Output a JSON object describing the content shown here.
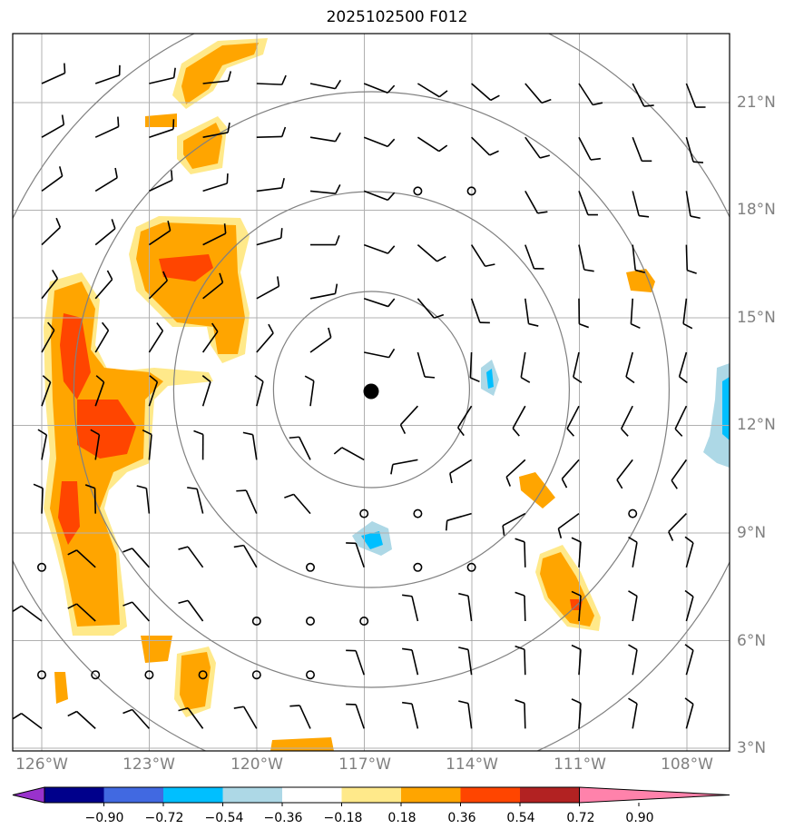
{
  "title": "2025102500 F012",
  "latitude_labels": [
    "21°N",
    "18°N",
    "15°N",
    "12°N",
    "9°N",
    "6°N",
    "3°N"
  ],
  "longitude_labels": [
    "126°W",
    "123°W",
    "120°W",
    "117°W",
    "114°W",
    "111°W",
    "108°W"
  ],
  "colorbar": {
    "tick_labels": [
      "−0.90",
      "−0.72",
      "−0.54",
      "−0.36",
      "−0.18",
      "0.18",
      "0.36",
      "0.54",
      "0.72",
      "0.90"
    ],
    "colors": [
      "#9932cc",
      "#00008b",
      "#4169e1",
      "#00bfff",
      "#add8e6",
      "#ffffff",
      "#ffe98a",
      "#ffa500",
      "#ff4500",
      "#b22222",
      "#ff82ab"
    ]
  },
  "storm_center": {
    "lon": -116.8,
    "lat": 13.0
  },
  "colors": {
    "ring": "#808080",
    "grid": "#b0b0b0",
    "barb": "#000000",
    "frame": "#000000"
  }
}
